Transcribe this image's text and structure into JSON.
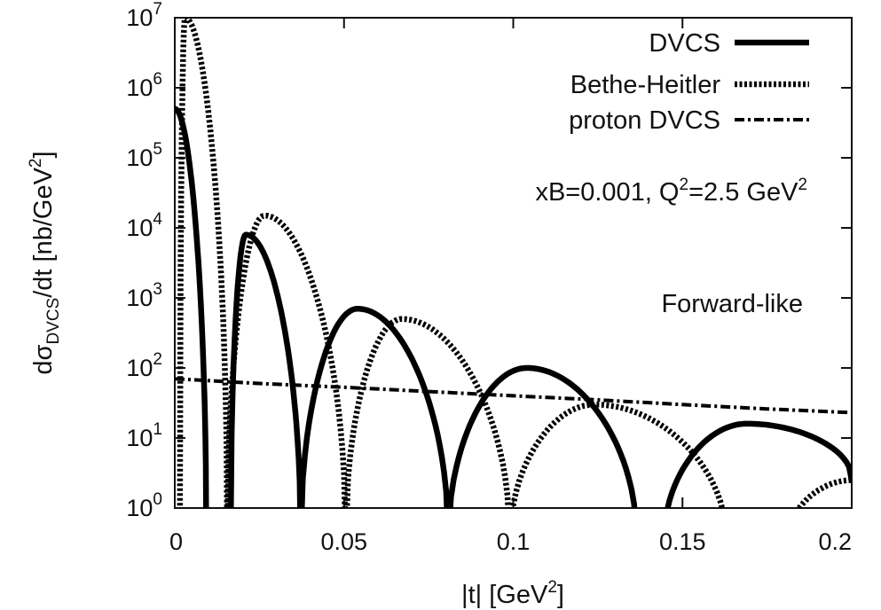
{
  "chart_data": {
    "type": "line",
    "xlabel": {
      "main": "|t| [GeV",
      "sup": "2",
      "end": "]"
    },
    "ylabel": {
      "pre": "dσ",
      "sub": "DVCS",
      "mid": "/dt [nb/GeV",
      "sup": "2",
      "end": "]"
    },
    "xlim": [
      0,
      0.2
    ],
    "ylim": [
      1,
      10000000
    ],
    "yscale": "log",
    "grid": false,
    "legend_position": "top-right",
    "xticks": [
      {
        "value": 0,
        "label": "0"
      },
      {
        "value": 0.05,
        "label": "0.05"
      },
      {
        "value": 0.1,
        "label": "0.1"
      },
      {
        "value": 0.15,
        "label": "0.15"
      },
      {
        "value": 0.2,
        "label": "0.2"
      }
    ],
    "yticks": [
      {
        "value": 1,
        "base": "10",
        "exp": "0"
      },
      {
        "value": 10,
        "base": "10",
        "exp": "1"
      },
      {
        "value": 100,
        "base": "10",
        "exp": "2"
      },
      {
        "value": 1000,
        "base": "10",
        "exp": "3"
      },
      {
        "value": 10000,
        "base": "10",
        "exp": "4"
      },
      {
        "value": 100000,
        "base": "10",
        "exp": "5"
      },
      {
        "value": 1000000,
        "base": "10",
        "exp": "6"
      },
      {
        "value": 10000000,
        "base": "10",
        "exp": "7"
      }
    ],
    "annotations": [
      {
        "text": "xB=0.001, Q",
        "sup": "2",
        "end": "=2.5 GeV",
        "sup2": "2"
      },
      {
        "text": "Forward-like"
      }
    ],
    "series": [
      {
        "name": "DVCS",
        "style": "solid",
        "color": "#000000",
        "lobes": [
          {
            "x0": 0.0,
            "x1": 0.0093,
            "xpeak": 0.0,
            "peak": 500000,
            "left_open": true
          },
          {
            "x0": 0.0165,
            "x1": 0.0372,
            "xpeak": 0.021,
            "peak": 8000
          },
          {
            "x0": 0.0372,
            "x1": 0.0808,
            "xpeak": 0.054,
            "peak": 700
          },
          {
            "x0": 0.0808,
            "x1": 0.1365,
            "xpeak": 0.104,
            "peak": 100
          },
          {
            "x0": 0.1445,
            "x1": 0.2,
            "xpeak": 0.169,
            "peak": 16,
            "right_open": true,
            "end_value": 2.5
          }
        ]
      },
      {
        "name": "Bethe-Heitler",
        "style": "dotted",
        "color": "#000000",
        "lobes": [
          {
            "x0": 0.0015,
            "x1": 0.0155,
            "xpeak": 0.003,
            "peak": 10000000,
            "left_clip": true
          },
          {
            "x0": 0.0155,
            "x1": 0.0505,
            "xpeak": 0.0265,
            "peak": 15000
          },
          {
            "x0": 0.0505,
            "x1": 0.099,
            "xpeak": 0.067,
            "peak": 500
          },
          {
            "x0": 0.099,
            "x1": 0.163,
            "xpeak": 0.124,
            "peak": 30
          },
          {
            "x0": 0.181,
            "x1": 0.2,
            "xpeak": 0.2,
            "peak": 2.5,
            "right_open": true
          }
        ]
      },
      {
        "name": "proton DVCS",
        "style": "dashdot",
        "color": "#000000",
        "x": [
          0,
          0.025,
          0.05,
          0.075,
          0.1,
          0.125,
          0.15,
          0.175,
          0.2
        ],
        "y": [
          70,
          60,
          53,
          46,
          40,
          35,
          30,
          26,
          23
        ]
      }
    ]
  }
}
